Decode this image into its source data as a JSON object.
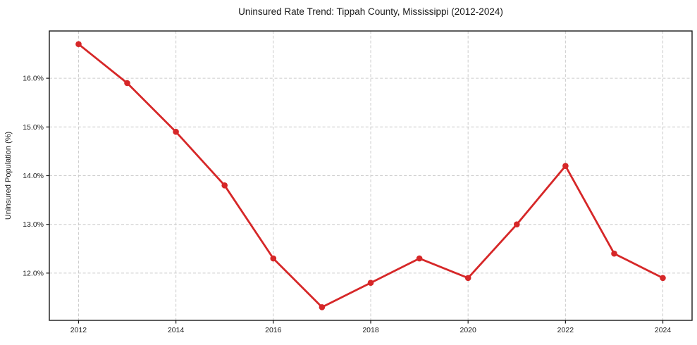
{
  "chart_data": {
    "type": "line",
    "title": "Uninsured Rate Trend: Tippah County, Mississippi (2012-2024)",
    "xlabel": "",
    "ylabel": "Uninsured Population (%)",
    "x": [
      2012,
      2013,
      2014,
      2015,
      2016,
      2017,
      2018,
      2019,
      2020,
      2021,
      2022,
      2023,
      2024
    ],
    "values": [
      16.7,
      15.9,
      14.9,
      13.8,
      12.3,
      11.3,
      11.8,
      12.3,
      11.9,
      13.0,
      14.2,
      12.4,
      11.9
    ],
    "xlim": [
      2011.4,
      2024.6
    ],
    "ylim": [
      11.03,
      16.97
    ],
    "xticks": [
      2012,
      2014,
      2016,
      2018,
      2020,
      2022,
      2024
    ],
    "xtick_labels": [
      "2012",
      "2014",
      "2016",
      "2018",
      "2020",
      "2022",
      "2024"
    ],
    "yticks": [
      12.0,
      13.0,
      14.0,
      15.0,
      16.0
    ],
    "ytick_labels": [
      "12.0%",
      "13.0%",
      "14.0%",
      "15.0%",
      "16.0%"
    ],
    "grid": true,
    "grid_style": "dashed",
    "legend": null,
    "marker": "circle",
    "colors": {
      "line": "#d62728",
      "marker": "#d62728",
      "grid": "#cccccc",
      "axis": "#1a1a1a",
      "text": "#1a1a1a",
      "background": "#ffffff"
    }
  }
}
